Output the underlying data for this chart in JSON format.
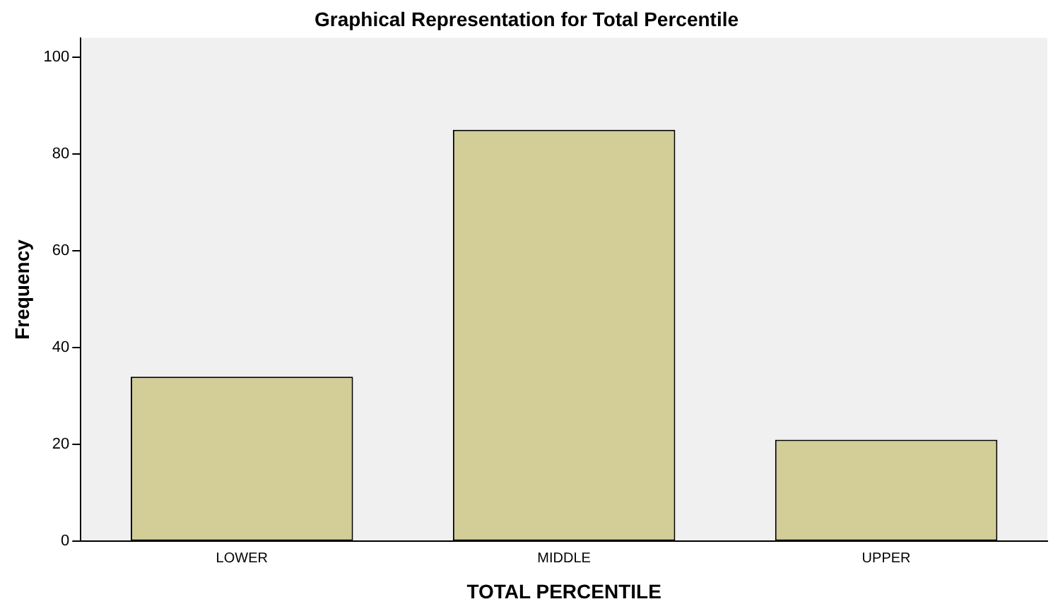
{
  "chart_data": {
    "type": "bar",
    "title": "Graphical Representation for Total Percentile",
    "xlabel": "TOTAL PERCENTILE",
    "ylabel": "Frequency",
    "categories": [
      "LOWER",
      "MIDDLE",
      "UPPER"
    ],
    "values": [
      34,
      85,
      21
    ],
    "color": "#d3ce97",
    "ylim": [
      0,
      104
    ],
    "yticks": [
      0,
      20,
      40,
      60,
      80,
      100
    ],
    "grid": false,
    "legend": false
  }
}
